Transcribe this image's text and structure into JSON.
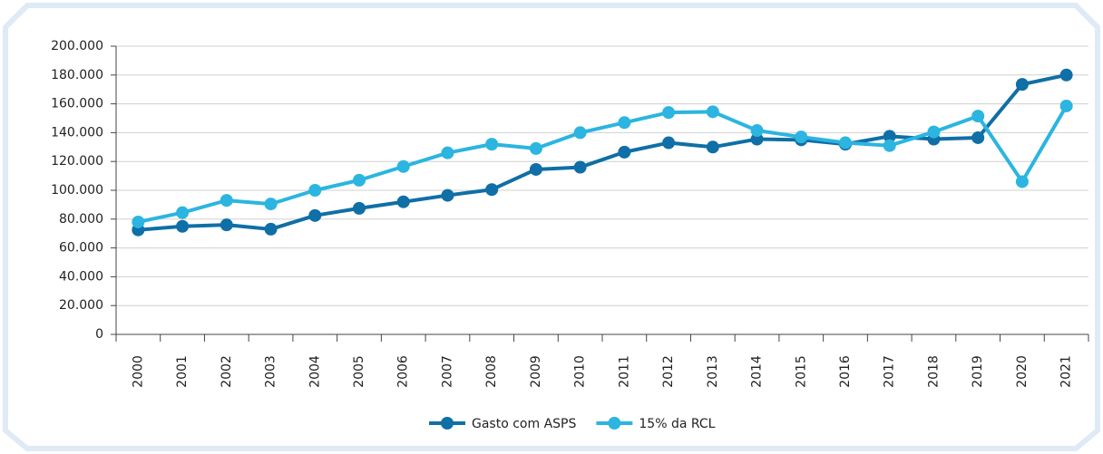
{
  "chart_data": {
    "type": "line",
    "categories": [
      "2000",
      "2001",
      "2002",
      "2003",
      "2004",
      "2005",
      "2006",
      "2007",
      "2008",
      "2009",
      "2010",
      "2011",
      "2012",
      "2013",
      "2014",
      "2015",
      "2016",
      "2017",
      "2018",
      "2019",
      "2020",
      "2021"
    ],
    "series": [
      {
        "name": "Gasto com ASPS",
        "color": "#0f6fa6",
        "values": [
          72500,
          75000,
          76000,
          73000,
          82500,
          87500,
          92000,
          96500,
          100500,
          114500,
          116000,
          126500,
          133000,
          130000,
          135500,
          135000,
          132000,
          137500,
          135500,
          136500,
          173500,
          180000
        ]
      },
      {
        "name": "15% da RCL",
        "color": "#2bb5e0",
        "values": [
          78000,
          84500,
          93000,
          90500,
          100000,
          107000,
          116500,
          126000,
          132000,
          129000,
          140000,
          147000,
          154000,
          154500,
          141500,
          137000,
          133000,
          131000,
          140500,
          151500,
          106000,
          158500
        ]
      }
    ],
    "ylim": [
      0,
      200000
    ],
    "yticks": [
      0,
      {
        "value": 20000,
        "label": "20.000"
      },
      {
        "value": 40000,
        "label": "40.000"
      },
      {
        "value": 60000,
        "label": "60.000"
      },
      {
        "value": 80000,
        "label": "80.000"
      },
      {
        "value": 100000,
        "label": "100.000"
      },
      {
        "value": 120000,
        "label": "120.000"
      },
      {
        "value": 140000,
        "label": "140.000"
      },
      {
        "value": 160000,
        "label": "160.000"
      },
      {
        "value": 180000,
        "label": "180.000"
      },
      {
        "value": 200000,
        "label": "200.000"
      }
    ],
    "grid": true,
    "legend": "bottom"
  }
}
